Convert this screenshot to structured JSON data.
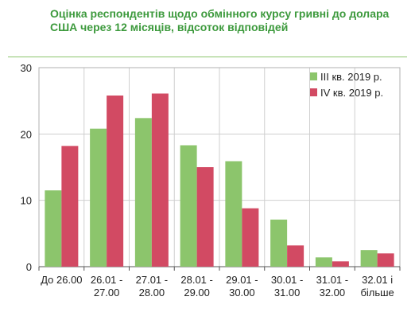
{
  "chart_data": {
    "type": "bar",
    "title": "Оцінка респондентів щодо обмінного курсу гривні до долара США через 12 місяців, відсоток відповідей",
    "categories": [
      [
        "До 26.00"
      ],
      [
        "26.01 -",
        "27.00"
      ],
      [
        "27.01 -",
        "28.00"
      ],
      [
        "28.01 -",
        "29.00"
      ],
      [
        "29.01 -",
        "30.00"
      ],
      [
        "30.01 -",
        "31.00"
      ],
      [
        "31.01 -",
        "32.00"
      ],
      [
        "32.01 і",
        "більше"
      ]
    ],
    "series": [
      {
        "name": "III кв. 2019 р.",
        "color": "#8cc56c",
        "values": [
          11.5,
          20.8,
          22.4,
          18.3,
          15.9,
          7.1,
          1.4,
          2.5
        ]
      },
      {
        "name": "IV кв. 2019 р.",
        "color": "#d24a63",
        "values": [
          18.2,
          25.8,
          26.1,
          15.0,
          8.8,
          3.2,
          0.8,
          2.0
        ]
      }
    ],
    "ylim": [
      0,
      30
    ],
    "yticks": [
      0,
      10,
      20,
      30
    ],
    "grid": true,
    "legend_position": "top-right",
    "xlabel": "",
    "ylabel": ""
  }
}
